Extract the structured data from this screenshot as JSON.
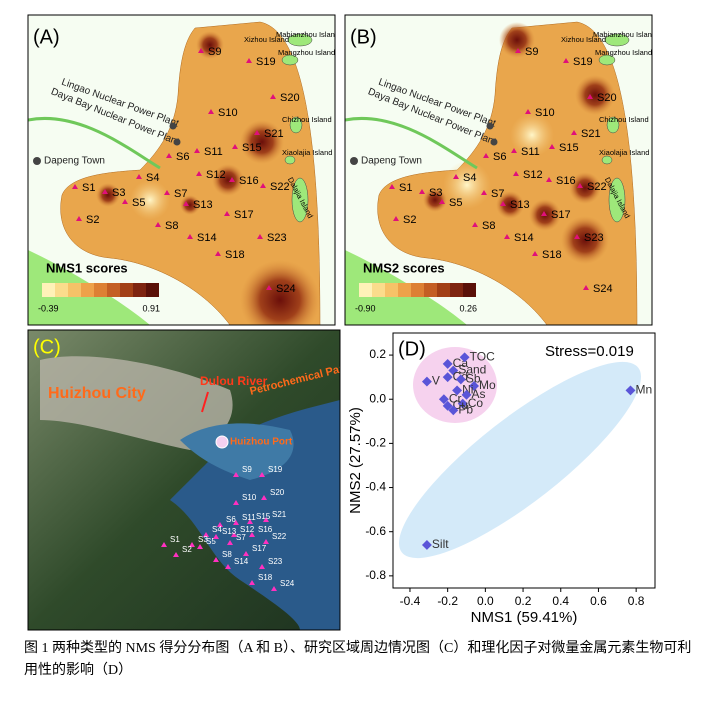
{
  "panel_a": {
    "label": "(A)",
    "legend_title": "NMS1 scores",
    "legend_min": "-0.39",
    "legend_max": "0.91",
    "places": [
      "Xizhou Island",
      "Mabianzhou Island",
      "Mangzhou Island",
      "Chizhou Island",
      "Xiaolajia Island",
      "Dalajia Island",
      "Lingao Nuclear Power Plant",
      "Daya Bay Nuclear Power Plant",
      "Dapeng Town"
    ],
    "stations": [
      "S9",
      "S19",
      "S20",
      "S10",
      "S21",
      "S15",
      "S6",
      "S11",
      "S12",
      "S16",
      "S4",
      "S1",
      "S3",
      "S5",
      "S7",
      "S22",
      "S13",
      "S17",
      "S8",
      "S14",
      "S23",
      "S2",
      "S18",
      "S24"
    ]
  },
  "panel_b": {
    "label": "(B)",
    "legend_title": "NMS2 scores",
    "legend_min": "-0.90",
    "legend_max": "0.26",
    "places": [
      "Xizhou Island",
      "Mabianzhou Island",
      "Mangzhou Island",
      "Chizhou Island",
      "Xiaolajia Island",
      "Dalajia Island",
      "Lingao Nuclear Power Plant",
      "Daya Bay Nuclear Power Plant",
      "Dapeng Town"
    ],
    "stations": [
      "S9",
      "S19",
      "S20",
      "S10",
      "S21",
      "S15",
      "S6",
      "S11",
      "S12",
      "S16",
      "S4",
      "S1",
      "S3",
      "S5",
      "S7",
      "S22",
      "S13",
      "S17",
      "S8",
      "S14",
      "S23",
      "S2",
      "S18",
      "S24"
    ]
  },
  "panel_c": {
    "label": "(C)",
    "places": [
      "Huizhou City",
      "Dulou River",
      "Petrochemical Park",
      "Huizhou Port"
    ],
    "stations": [
      "S9",
      "S19",
      "S20",
      "S10",
      "S21",
      "S15",
      "S6",
      "S11",
      "S12",
      "S16",
      "S4",
      "S1",
      "S3",
      "S5",
      "S7",
      "S22",
      "S13",
      "S17",
      "S8",
      "S14",
      "S23",
      "S2",
      "S18",
      "S24"
    ]
  },
  "chart_data": {
    "type": "scatter",
    "panel_label": "(D)",
    "annotation": "Stress=0.019",
    "x_label": "NMS1 (59.41%)",
    "y_label": "NMS2 (27.57%)",
    "color": "#5a55d8",
    "labels": [
      "Ca",
      "TOC",
      "Sand",
      "Cd",
      "V",
      "Sb",
      "Mo",
      "Ni",
      "As",
      "Cr",
      "Co",
      "Cu",
      "Pb",
      "Mn",
      "Silt"
    ],
    "x": [
      -0.2,
      -0.11,
      -0.17,
      -0.2,
      -0.31,
      -0.13,
      -0.06,
      -0.15,
      -0.1,
      -0.22,
      -0.12,
      -0.2,
      -0.17,
      0.77,
      -0.31
    ],
    "y": [
      0.16,
      0.19,
      0.13,
      0.1,
      0.08,
      0.09,
      0.06,
      0.04,
      0.02,
      0.0,
      -0.02,
      -0.03,
      -0.05,
      0.04,
      -0.66
    ],
    "xlim": [
      -0.49,
      0.9
    ],
    "ylim": [
      -0.855,
      0.3
    ],
    "xticks": [
      -0.4,
      -0.2,
      {
        "value": 0,
        "label": "0.0"
      },
      0.2,
      0.4,
      0.6,
      0.8
    ],
    "yticks": [
      0.2,
      {
        "value": 0,
        "label": "0.0"
      },
      -0.2,
      -0.4,
      -0.6,
      -0.8
    ]
  },
  "caption": "图 1  两种类型的 NMS 得分分布图（A 和 B）、研究区域周边情况图（C）和理化因子对微量金属元素生物可利用性的影响（D）"
}
